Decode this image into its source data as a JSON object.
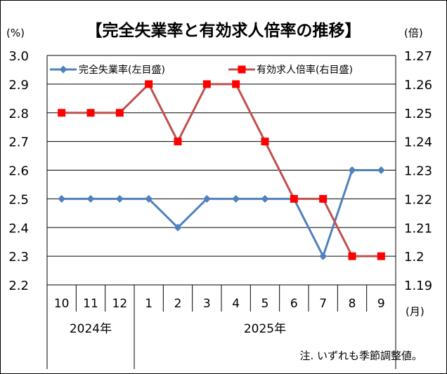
{
  "chart_data": {
    "type": "line",
    "title": "【完全失業率と有効求人倍率の推移】",
    "categories": [
      "10",
      "11",
      "12",
      "1",
      "2",
      "3",
      "4",
      "5",
      "6",
      "7",
      "8",
      "9"
    ],
    "year_groups": [
      {
        "label": "2024年",
        "start": 0,
        "end": 2
      },
      {
        "label": "2025年",
        "start": 3,
        "end": 11
      }
    ],
    "series": [
      {
        "name": "完全失業率(左目盛)",
        "axis": "left",
        "color": "#4f81bd",
        "marker": "diamond",
        "values": [
          2.5,
          2.5,
          2.5,
          2.5,
          2.4,
          2.5,
          2.5,
          2.5,
          2.5,
          2.3,
          2.6,
          2.6
        ]
      },
      {
        "name": "有効求人倍率(右目盛)",
        "axis": "right",
        "color": "#c0504d",
        "marker_color": "#ff0000",
        "marker": "square",
        "values": [
          1.25,
          1.25,
          1.25,
          1.26,
          1.24,
          1.26,
          1.26,
          1.24,
          1.22,
          1.22,
          1.2,
          1.2
        ]
      }
    ],
    "left_axis": {
      "unit": "(%)",
      "min": 2.2,
      "max": 3.0,
      "step": 0.1,
      "ticks": [
        "2.2",
        "2.3",
        "2.4",
        "2.5",
        "2.6",
        "2.7",
        "2.8",
        "2.9",
        "3.0"
      ]
    },
    "right_axis": {
      "unit": "(倍)",
      "min": 1.19,
      "max": 1.27,
      "step": 0.01,
      "ticks": [
        "1.19",
        "1.2",
        "1.21",
        "1.22",
        "1.23",
        "1.24",
        "1.25",
        "1.26",
        "1.27"
      ]
    },
    "x_unit": "(月)",
    "grid": true,
    "legend_position": "top"
  },
  "note": "注. いずれも季節調整値。"
}
